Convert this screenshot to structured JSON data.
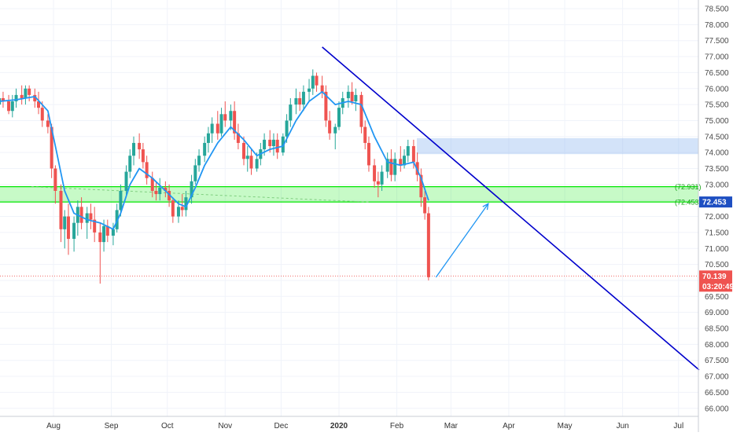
{
  "chart_data": {
    "type": "candlestick",
    "title": "",
    "xlabel": "",
    "ylabel": "",
    "ylim": [
      65.8,
      78.6
    ],
    "grid": true,
    "legend": "none",
    "y_ticks": [
      66.0,
      66.5,
      67.0,
      67.5,
      68.0,
      68.5,
      69.0,
      69.5,
      70.0,
      70.5,
      71.0,
      71.5,
      72.0,
      72.5,
      73.0,
      73.5,
      74.0,
      74.5,
      75.0,
      75.5,
      76.0,
      76.5,
      77.0,
      77.5,
      78.0,
      78.5
    ],
    "y_tick_labels": [
      "66.000",
      "66.500",
      "67.000",
      "67.500",
      "68.000",
      "68.500",
      "69.000",
      "69.500",
      "70.000",
      "70.500",
      "71.000",
      "71.500",
      "72.000",
      "72.500",
      "73.000",
      "73.500",
      "74.000",
      "74.500",
      "75.000",
      "75.500",
      "76.000",
      "76.500",
      "77.000",
      "77.500",
      "78.000",
      "78.500"
    ],
    "x_ticks": [
      "2019-08-01",
      "2019-09-01",
      "2019-10-01",
      "2019-11-01",
      "2019-12-01",
      "2020-01-01",
      "2020-02-01",
      "2020-03-01",
      "2020-04-01",
      "2020-05-01",
      "2020-06-01",
      "2020-07-01"
    ],
    "x_tick_labels": [
      "Aug",
      "Sep",
      "Oct",
      "Nov",
      "Dec",
      "2020",
      "Feb",
      "Mar",
      "Apr",
      "May",
      "Jun",
      "Jul"
    ],
    "x_range": [
      "2019-07-03",
      "2020-07-12"
    ],
    "series": [
      {
        "type": "candlestick",
        "up_color": "#26a69a",
        "down_color": "#ef5350",
        "ohlc": [
          [
            "2019-07-03",
            75.5,
            75.9,
            75.3,
            75.7
          ],
          [
            "2019-07-05",
            75.7,
            75.9,
            75.4,
            75.6
          ],
          [
            "2019-07-08",
            75.6,
            75.8,
            75.2,
            75.3
          ],
          [
            "2019-07-10",
            75.3,
            75.8,
            75.1,
            75.6
          ],
          [
            "2019-07-12",
            75.6,
            76.0,
            75.4,
            75.8
          ],
          [
            "2019-07-15",
            75.8,
            76.1,
            75.5,
            75.7
          ],
          [
            "2019-07-17",
            75.7,
            76.1,
            75.5,
            76.0
          ],
          [
            "2019-07-19",
            76.0,
            76.1,
            75.6,
            75.8
          ],
          [
            "2019-07-22",
            75.8,
            76.0,
            75.4,
            75.6
          ],
          [
            "2019-07-24",
            75.6,
            75.9,
            75.2,
            75.4
          ],
          [
            "2019-07-26",
            75.4,
            75.6,
            74.8,
            75.0
          ],
          [
            "2019-07-29",
            75.0,
            75.2,
            74.6,
            74.8
          ],
          [
            "2019-07-31",
            74.8,
            74.9,
            73.2,
            73.5
          ],
          [
            "2019-08-02",
            73.5,
            73.6,
            72.4,
            72.8
          ],
          [
            "2019-08-05",
            72.8,
            73.0,
            71.2,
            71.6
          ],
          [
            "2019-08-07",
            71.6,
            72.2,
            71.0,
            72.0
          ],
          [
            "2019-08-09",
            72.0,
            72.4,
            70.8,
            71.3
          ],
          [
            "2019-08-12",
            71.3,
            72.0,
            70.9,
            71.8
          ],
          [
            "2019-08-14",
            71.8,
            72.5,
            71.4,
            72.3
          ],
          [
            "2019-08-16",
            72.3,
            72.6,
            71.6,
            71.8
          ],
          [
            "2019-08-19",
            71.8,
            72.3,
            71.3,
            72.1
          ],
          [
            "2019-08-21",
            72.1,
            72.4,
            71.6,
            71.9
          ],
          [
            "2019-08-23",
            71.9,
            72.3,
            71.2,
            71.5
          ],
          [
            "2019-08-26",
            71.5,
            71.8,
            69.9,
            71.2
          ],
          [
            "2019-08-28",
            71.2,
            71.9,
            70.9,
            71.7
          ],
          [
            "2019-08-30",
            71.7,
            71.9,
            71.2,
            71.4
          ],
          [
            "2019-09-02",
            71.4,
            71.8,
            71.1,
            71.6
          ],
          [
            "2019-09-04",
            71.6,
            72.4,
            71.5,
            72.2
          ],
          [
            "2019-09-06",
            72.2,
            73.0,
            72.0,
            72.8
          ],
          [
            "2019-09-09",
            72.8,
            73.6,
            72.6,
            73.4
          ],
          [
            "2019-09-11",
            73.4,
            74.1,
            73.2,
            73.9
          ],
          [
            "2019-09-13",
            73.9,
            74.5,
            73.6,
            74.3
          ],
          [
            "2019-09-16",
            74.3,
            74.6,
            73.8,
            74.1
          ],
          [
            "2019-09-18",
            74.1,
            74.3,
            73.5,
            73.7
          ],
          [
            "2019-09-20",
            73.7,
            73.9,
            73.0,
            73.2
          ],
          [
            "2019-09-23",
            73.2,
            73.4,
            72.6,
            72.8
          ],
          [
            "2019-09-25",
            72.8,
            73.1,
            72.5,
            72.7
          ],
          [
            "2019-09-27",
            72.7,
            73.2,
            72.5,
            72.9
          ],
          [
            "2019-09-30",
            72.9,
            73.1,
            72.6,
            72.8
          ],
          [
            "2019-10-02",
            72.8,
            73.0,
            72.3,
            72.5
          ],
          [
            "2019-10-04",
            72.5,
            72.6,
            71.8,
            72.0
          ],
          [
            "2019-10-07",
            72.0,
            72.5,
            71.8,
            72.3
          ],
          [
            "2019-10-09",
            72.3,
            72.7,
            72.0,
            72.2
          ],
          [
            "2019-10-11",
            72.2,
            72.8,
            72.0,
            72.6
          ],
          [
            "2019-10-14",
            72.6,
            73.3,
            72.4,
            73.1
          ],
          [
            "2019-10-16",
            73.1,
            73.8,
            73.0,
            73.6
          ],
          [
            "2019-10-18",
            73.6,
            74.1,
            73.4,
            73.9
          ],
          [
            "2019-10-21",
            73.9,
            74.5,
            73.7,
            74.3
          ],
          [
            "2019-10-23",
            74.3,
            74.8,
            74.0,
            74.6
          ],
          [
            "2019-10-25",
            74.6,
            75.1,
            74.3,
            74.9
          ],
          [
            "2019-10-28",
            74.9,
            75.3,
            74.4,
            74.6
          ],
          [
            "2019-10-30",
            74.6,
            75.4,
            74.5,
            75.2
          ],
          [
            "2019-11-01",
            75.2,
            75.6,
            74.8,
            75.0
          ],
          [
            "2019-11-04",
            75.0,
            75.5,
            74.7,
            75.3
          ],
          [
            "2019-11-06",
            75.3,
            75.6,
            74.4,
            74.6
          ],
          [
            "2019-11-08",
            74.6,
            74.9,
            74.1,
            74.3
          ],
          [
            "2019-11-11",
            74.3,
            74.5,
            73.6,
            73.8
          ],
          [
            "2019-11-13",
            73.8,
            74.2,
            73.4,
            73.9
          ],
          [
            "2019-11-15",
            73.9,
            74.1,
            73.3,
            73.5
          ],
          [
            "2019-11-18",
            73.5,
            74.0,
            73.4,
            73.8
          ],
          [
            "2019-11-20",
            73.8,
            74.3,
            73.6,
            74.1
          ],
          [
            "2019-11-22",
            74.1,
            74.6,
            73.9,
            74.4
          ],
          [
            "2019-11-25",
            74.4,
            74.7,
            74.0,
            74.2
          ],
          [
            "2019-11-27",
            74.2,
            74.6,
            73.9,
            74.4
          ],
          [
            "2019-11-29",
            74.4,
            74.6,
            73.8,
            74.0
          ],
          [
            "2019-12-02",
            74.0,
            74.6,
            73.9,
            74.5
          ],
          [
            "2019-12-04",
            74.5,
            75.2,
            74.3,
            75.0
          ],
          [
            "2019-12-06",
            75.0,
            75.7,
            74.8,
            75.5
          ],
          [
            "2019-12-09",
            75.5,
            76.0,
            75.2,
            75.7
          ],
          [
            "2019-12-11",
            75.7,
            75.9,
            75.3,
            75.5
          ],
          [
            "2019-12-13",
            75.5,
            76.1,
            75.3,
            75.9
          ],
          [
            "2019-12-16",
            75.9,
            76.3,
            75.6,
            76.0
          ],
          [
            "2019-12-18",
            76.0,
            76.6,
            75.8,
            76.4
          ],
          [
            "2019-12-20",
            76.4,
            76.5,
            75.9,
            76.1
          ],
          [
            "2019-12-23",
            76.1,
            76.4,
            75.7,
            75.9
          ],
          [
            "2019-12-25",
            75.9,
            76.1,
            74.8,
            75.0
          ],
          [
            "2019-12-27",
            75.0,
            75.3,
            74.4,
            74.6
          ],
          [
            "2019-12-30",
            74.6,
            74.9,
            74.1,
            74.8
          ],
          [
            "2020-01-01",
            74.8,
            75.6,
            74.7,
            75.4
          ],
          [
            "2020-01-03",
            75.4,
            75.9,
            75.2,
            75.7
          ],
          [
            "2020-01-06",
            75.7,
            76.1,
            75.4,
            75.9
          ],
          [
            "2020-01-08",
            75.9,
            76.2,
            75.5,
            75.6
          ],
          [
            "2020-01-10",
            75.6,
            76.0,
            75.3,
            75.8
          ],
          [
            "2020-01-13",
            75.8,
            75.9,
            74.6,
            74.8
          ],
          [
            "2020-01-15",
            74.8,
            75.0,
            74.1,
            74.3
          ],
          [
            "2020-01-17",
            74.3,
            74.5,
            73.4,
            73.6
          ],
          [
            "2020-01-20",
            73.6,
            73.8,
            72.9,
            73.1
          ],
          [
            "2020-01-22",
            73.1,
            73.4,
            72.6,
            73.0
          ],
          [
            "2020-01-24",
            73.0,
            73.6,
            72.8,
            73.4
          ],
          [
            "2020-01-27",
            73.4,
            74.0,
            73.2,
            73.8
          ],
          [
            "2020-01-29",
            73.8,
            74.1,
            73.1,
            73.3
          ],
          [
            "2020-01-31",
            73.3,
            74.0,
            73.1,
            73.8
          ],
          [
            "2020-02-03",
            73.8,
            74.2,
            73.4,
            73.6
          ],
          [
            "2020-02-05",
            73.6,
            74.1,
            73.5,
            73.9
          ],
          [
            "2020-02-07",
            73.9,
            74.4,
            73.7,
            74.2
          ],
          [
            "2020-02-10",
            74.2,
            74.4,
            73.5,
            73.7
          ],
          [
            "2020-02-12",
            73.7,
            74.0,
            73.1,
            73.3
          ],
          [
            "2020-02-14",
            73.3,
            73.5,
            72.3,
            72.6
          ],
          [
            "2020-02-16",
            72.6,
            72.8,
            71.9,
            72.1
          ],
          [
            "2020-02-18",
            72.1,
            72.3,
            70.0,
            70.1
          ]
        ]
      },
      {
        "type": "line",
        "color": "#2196f3",
        "points": [
          [
            "2019-07-03",
            75.6
          ],
          [
            "2019-07-12",
            75.65
          ],
          [
            "2019-07-22",
            75.75
          ],
          [
            "2019-07-29",
            75.3
          ],
          [
            "2019-08-02",
            74.2
          ],
          [
            "2019-08-07",
            72.8
          ],
          [
            "2019-08-12",
            72.1
          ],
          [
            "2019-08-19",
            71.9
          ],
          [
            "2019-08-26",
            71.8
          ],
          [
            "2019-09-02",
            71.6
          ],
          [
            "2019-09-06",
            72.1
          ],
          [
            "2019-09-11",
            73.0
          ],
          [
            "2019-09-16",
            73.5
          ],
          [
            "2019-09-23",
            73.2
          ],
          [
            "2019-09-30",
            72.8
          ],
          [
            "2019-10-07",
            72.4
          ],
          [
            "2019-10-11",
            72.3
          ],
          [
            "2019-10-16",
            72.9
          ],
          [
            "2019-10-21",
            73.6
          ],
          [
            "2019-10-28",
            74.3
          ],
          [
            "2019-11-04",
            74.8
          ],
          [
            "2019-11-11",
            74.4
          ],
          [
            "2019-11-18",
            73.9
          ],
          [
            "2019-11-25",
            74.1
          ],
          [
            "2019-12-02",
            74.2
          ],
          [
            "2019-12-09",
            75.0
          ],
          [
            "2019-12-16",
            75.6
          ],
          [
            "2019-12-23",
            75.9
          ],
          [
            "2019-12-30",
            75.5
          ],
          [
            "2020-01-06",
            75.6
          ],
          [
            "2020-01-13",
            75.5
          ],
          [
            "2020-01-20",
            74.5
          ],
          [
            "2020-01-27",
            73.7
          ],
          [
            "2020-02-03",
            73.6
          ],
          [
            "2020-02-10",
            73.7
          ],
          [
            "2020-02-14",
            73.2
          ],
          [
            "2020-02-18",
            72.5
          ]
        ]
      }
    ],
    "price_label": "70.139",
    "countdown_label": "03:20:49",
    "level_label_top": "72.931",
    "level_label_bottom": "72.453",
    "zones": [
      {
        "name": "support-zone",
        "y1": 72.452,
        "y2": 72.931,
        "color": "#00e600"
      },
      {
        "name": "resistance-zone",
        "y1": 73.95,
        "y2": 74.45,
        "color": "#90b8f0"
      }
    ],
    "trendline": {
      "color": "#0000cc",
      "p1": [
        "2019-12-23",
        77.3
      ],
      "p2": [
        "2020-07-12",
        67.2
      ]
    },
    "arrow": {
      "color": "#2196f3",
      "p1": [
        "2020-02-22",
        70.1
      ],
      "p2": [
        "2020-03-21",
        72.4
      ]
    }
  }
}
